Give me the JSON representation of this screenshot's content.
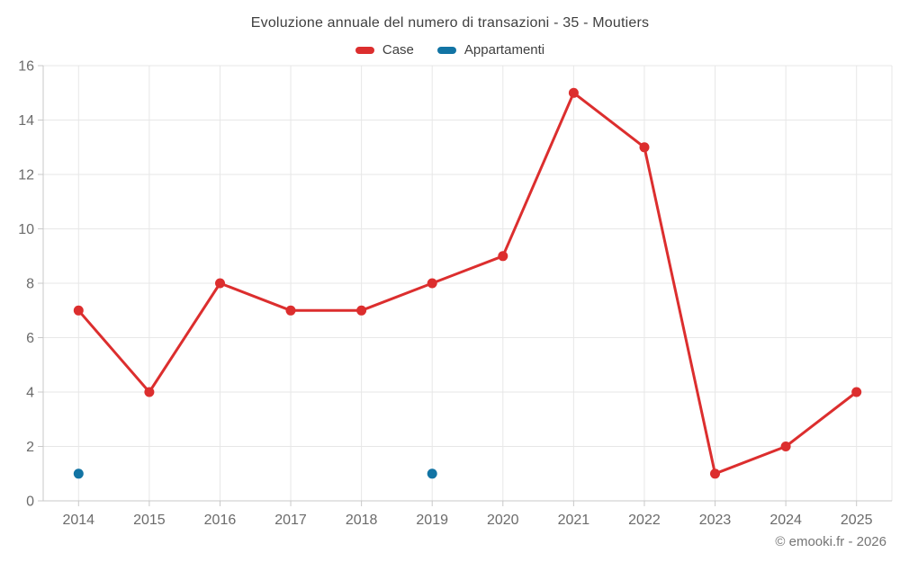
{
  "title": "Evoluzione annuale del numero di transazioni - 35 - Moutiers",
  "legend": [
    {
      "label": "Case",
      "color": "#dc2e2e"
    },
    {
      "label": "Appartamenti",
      "color": "#1274a4"
    }
  ],
  "footer": "© emooki.fr - 2026",
  "colors": {
    "case_red": "#dc2e2e",
    "appartamenti_blue": "#1274a4",
    "gridline": "#e7e7e7",
    "axis_line": "#c8c8c8",
    "axis_label": "#6b6b6b",
    "title_text": "#3f3f3f",
    "footer_text": "#757575"
  },
  "chart_data": {
    "type": "line",
    "title": "Evoluzione annuale del numero di transazioni - 35 - Moutiers",
    "xlabel": "",
    "ylabel": "",
    "categories": [
      "2014",
      "2015",
      "2016",
      "2017",
      "2018",
      "2019",
      "2020",
      "2021",
      "2022",
      "2023",
      "2024",
      "2025"
    ],
    "series": [
      {
        "name": "Case",
        "color": "#dc2e2e",
        "values": [
          7,
          4,
          8,
          7,
          7,
          8,
          9,
          15,
          13,
          1,
          2,
          4
        ]
      },
      {
        "name": "Appartamenti",
        "color": "#1274a4",
        "values": [
          1,
          null,
          null,
          null,
          null,
          1,
          null,
          null,
          null,
          null,
          null,
          null
        ]
      }
    ],
    "ylim": [
      0,
      16
    ],
    "ytick_step": 2,
    "grid": true,
    "legend_position": "top"
  }
}
